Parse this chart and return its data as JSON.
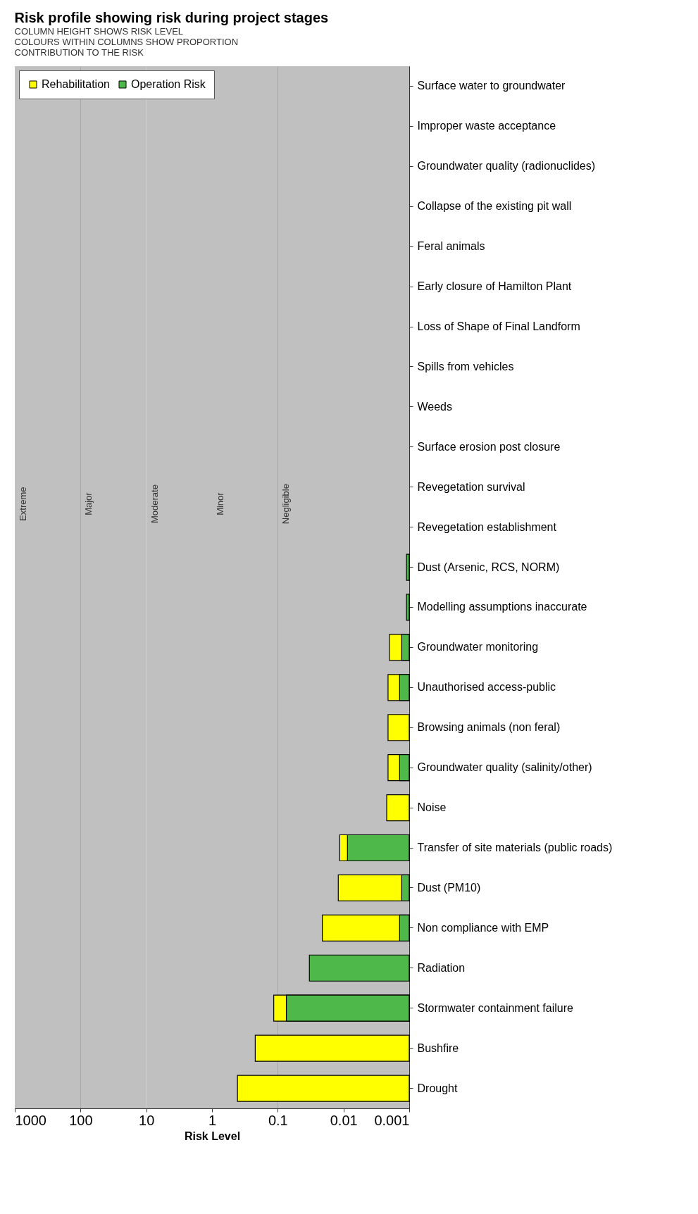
{
  "chart_data": {
    "type": "bar",
    "orientation": "horizontal",
    "log": "x",
    "title": "Risk profile showing risk during project stages",
    "xlabel": "Risk Level",
    "annotations": [
      "COLUMN HEIGHT SHOWS RISK LEVEL\nCOLOURS WITHIN COLUMNS SHOW PROPORTION\nCONTRIBUTION TO THE RISK"
    ],
    "categories": [
      "Surface water to groundwater",
      "Improper waste acceptance",
      "Groundwater quality (radionuclides)",
      "Collapse of the existing pit wall",
      "Feral animals",
      "Early closure of Hamilton Plant",
      "Loss of Shape of Final Landform",
      "Spills from vehicles",
      "Weeds",
      "Surface erosion post closure",
      "Revegetation survival",
      "Revegetation establishment",
      "Dust (Arsenic, RCS, NORM)",
      "Modelling assumptions inaccurate",
      "Groundwater monitoring",
      "Unauthorised access-public",
      "Browsing animals (non feral)",
      "Groundwater quality (salinity/other)",
      "Noise",
      "Transfer of site materials (public roads)",
      "Dust (PM10)",
      "Non compliance with EMP",
      "Radiation",
      "Stormwater containment failure",
      "Bushfire",
      "Drought"
    ],
    "series": [
      {
        "name": "Rehabilitation",
        "color": "#ffff00",
        "values": [
          null,
          null,
          null,
          null,
          null,
          null,
          null,
          null,
          null,
          null,
          null,
          null,
          null,
          null,
          0.002,
          0.0021,
          0.0021,
          0.0021,
          0.0022,
          0.0114,
          0.012,
          0.021,
          null,
          0.115,
          0.22,
          0.41
        ]
      },
      {
        "name": "Operation Risk",
        "color": "#4fb84a",
        "values": [
          null,
          null,
          null,
          null,
          null,
          null,
          null,
          null,
          null,
          null,
          null,
          null,
          0.0011,
          0.0011,
          0.0013,
          0.0014,
          null,
          0.0014,
          null,
          0.0087,
          0.0013,
          0.0014,
          0.033,
          0.074,
          null,
          null
        ]
      }
    ],
    "xlim": [
      1000,
      0.001
    ],
    "xticks": [
      1000,
      100,
      10,
      1,
      0.1,
      0.01,
      0.001
    ],
    "grid": "x",
    "legend": "top left",
    "bands": [
      {
        "axis": "x",
        "from": 1000,
        "to": 100,
        "label": "Extreme",
        "color": "#c0c0c0"
      },
      {
        "axis": "x",
        "from": 100,
        "to": 10,
        "label": "Major",
        "color": "#c0c0c0"
      },
      {
        "axis": "x",
        "from": 10,
        "to": 1,
        "label": "Moderate",
        "color": "#c0c0c0"
      },
      {
        "axis": "x",
        "from": 1,
        "to": 0.1,
        "label": "Minor",
        "color": "#c0c0c0"
      },
      {
        "axis": "x",
        "from": 0.1,
        "to": 0.001,
        "label": "Negligible",
        "color": "#c0c0c0"
      }
    ]
  }
}
